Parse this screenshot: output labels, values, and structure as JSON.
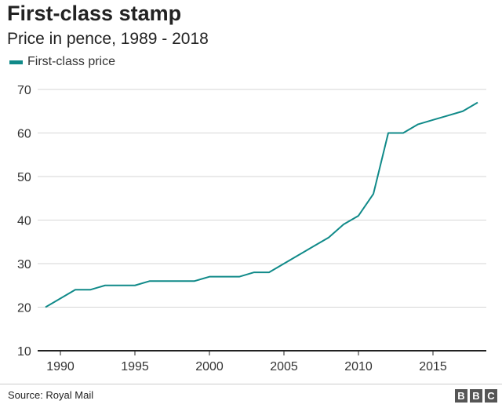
{
  "chart_data": {
    "type": "line",
    "title": "First-class stamp",
    "subtitle": "Price in pence, 1989 - 2018",
    "xlabel": "",
    "ylabel": "",
    "legend": {
      "placement": "top-left",
      "entries": [
        "First-class price"
      ]
    },
    "ylim": [
      10,
      70
    ],
    "xlim": [
      1989,
      2018
    ],
    "yticks": [
      10,
      20,
      30,
      40,
      50,
      60,
      70
    ],
    "xticks": [
      1990,
      1995,
      2000,
      2005,
      2010,
      2015
    ],
    "grid": true,
    "x": [
      1989,
      1990,
      1991,
      1992,
      1993,
      1994,
      1995,
      1996,
      1997,
      1998,
      1999,
      2000,
      2001,
      2002,
      2003,
      2004,
      2005,
      2006,
      2007,
      2008,
      2009,
      2010,
      2011,
      2012,
      2013,
      2014,
      2015,
      2016,
      2017,
      2018
    ],
    "series": [
      {
        "name": "First-class price",
        "color": "#108a89",
        "values": [
          20,
          22,
          24,
          24,
          25,
          25,
          25,
          26,
          26,
          26,
          26,
          27,
          27,
          27,
          28,
          28,
          30,
          32,
          34,
          36,
          39,
          41,
          46,
          60,
          60,
          62,
          63,
          64,
          65,
          67
        ]
      }
    ]
  },
  "footer": {
    "source": "Source: Royal Mail",
    "logo": [
      "B",
      "B",
      "C"
    ]
  }
}
